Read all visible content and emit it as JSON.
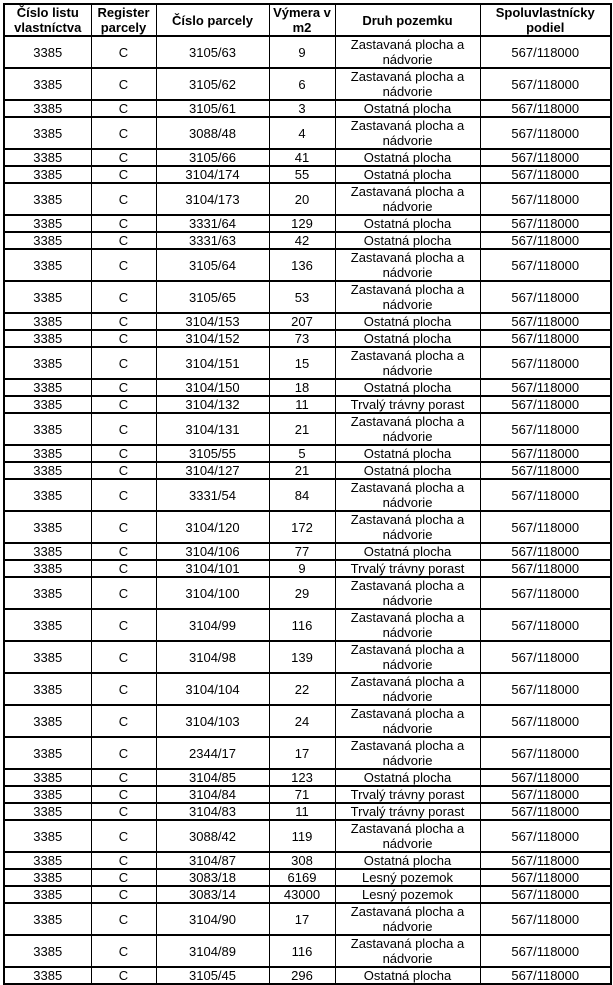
{
  "table": {
    "headers": [
      "Číslo listu vlastníctva",
      "Register parcely",
      "Číslo parcely",
      "Výmera v m2",
      "Druh pozemku",
      "Spoluvlastnícky podiel"
    ],
    "rows": [
      {
        "lv": "3385",
        "reg": "C",
        "parcel": "3105/63",
        "area": "9",
        "type": "Zastavaná plocha a nádvorie",
        "share": "567/118000"
      },
      {
        "lv": "3385",
        "reg": "C",
        "parcel": "3105/62",
        "area": "6",
        "type": "Zastavaná plocha a nádvorie",
        "share": "567/118000"
      },
      {
        "lv": "3385",
        "reg": "C",
        "parcel": "3105/61",
        "area": "3",
        "type": "Ostatná plocha",
        "share": "567/118000"
      },
      {
        "lv": "3385",
        "reg": "C",
        "parcel": "3088/48",
        "area": "4",
        "type": "Zastavaná plocha a nádvorie",
        "share": "567/118000"
      },
      {
        "lv": "3385",
        "reg": "C",
        "parcel": "3105/66",
        "area": "41",
        "type": "Ostatná plocha",
        "share": "567/118000"
      },
      {
        "lv": "3385",
        "reg": "C",
        "parcel": "3104/174",
        "area": "55",
        "type": "Ostatná plocha",
        "share": "567/118000"
      },
      {
        "lv": "3385",
        "reg": "C",
        "parcel": "3104/173",
        "area": "20",
        "type": "Zastavaná plocha a nádvorie",
        "share": "567/118000"
      },
      {
        "lv": "3385",
        "reg": "C",
        "parcel": "3331/64",
        "area": "129",
        "type": "Ostatná plocha",
        "share": "567/118000"
      },
      {
        "lv": "3385",
        "reg": "C",
        "parcel": "3331/63",
        "area": "42",
        "type": "Ostatná plocha",
        "share": "567/118000"
      },
      {
        "lv": "3385",
        "reg": "C",
        "parcel": "3105/64",
        "area": "136",
        "type": "Zastavaná plocha a nádvorie",
        "share": "567/118000"
      },
      {
        "lv": "3385",
        "reg": "C",
        "parcel": "3105/65",
        "area": "53",
        "type": "Zastavaná plocha a nádvorie",
        "share": "567/118000"
      },
      {
        "lv": "3385",
        "reg": "C",
        "parcel": "3104/153",
        "area": "207",
        "type": "Ostatná plocha",
        "share": "567/118000"
      },
      {
        "lv": "3385",
        "reg": "C",
        "parcel": "3104/152",
        "area": "73",
        "type": "Ostatná plocha",
        "share": "567/118000"
      },
      {
        "lv": "3385",
        "reg": "C",
        "parcel": "3104/151",
        "area": "15",
        "type": "Zastavaná plocha a nádvorie",
        "share": "567/118000"
      },
      {
        "lv": "3385",
        "reg": "C",
        "parcel": "3104/150",
        "area": "18",
        "type": "Ostatná plocha",
        "share": "567/118000"
      },
      {
        "lv": "3385",
        "reg": "C",
        "parcel": "3104/132",
        "area": "11",
        "type": "Trvalý trávny porast",
        "share": "567/118000"
      },
      {
        "lv": "3385",
        "reg": "C",
        "parcel": "3104/131",
        "area": "21",
        "type": "Zastavaná plocha a nádvorie",
        "share": "567/118000"
      },
      {
        "lv": "3385",
        "reg": "C",
        "parcel": "3105/55",
        "area": "5",
        "type": "Ostatná plocha",
        "share": "567/118000"
      },
      {
        "lv": "3385",
        "reg": "C",
        "parcel": "3104/127",
        "area": "21",
        "type": "Ostatná plocha",
        "share": "567/118000"
      },
      {
        "lv": "3385",
        "reg": "C",
        "parcel": "3331/54",
        "area": "84",
        "type": "Zastavaná plocha a nádvorie",
        "share": "567/118000"
      },
      {
        "lv": "3385",
        "reg": "C",
        "parcel": "3104/120",
        "area": "172",
        "type": "Zastavaná plocha a nádvorie",
        "share": "567/118000"
      },
      {
        "lv": "3385",
        "reg": "C",
        "parcel": "3104/106",
        "area": "77",
        "type": "Ostatná plocha",
        "share": "567/118000"
      },
      {
        "lv": "3385",
        "reg": "C",
        "parcel": "3104/101",
        "area": "9",
        "type": "Trvalý trávny porast",
        "share": "567/118000"
      },
      {
        "lv": "3385",
        "reg": "C",
        "parcel": "3104/100",
        "area": "29",
        "type": "Zastavaná plocha a nádvorie",
        "share": "567/118000"
      },
      {
        "lv": "3385",
        "reg": "C",
        "parcel": "3104/99",
        "area": "116",
        "type": "Zastavaná plocha a nádvorie",
        "share": "567/118000"
      },
      {
        "lv": "3385",
        "reg": "C",
        "parcel": "3104/98",
        "area": "139",
        "type": "Zastavaná plocha a nádvorie",
        "share": "567/118000"
      },
      {
        "lv": "3385",
        "reg": "C",
        "parcel": "3104/104",
        "area": "22",
        "type": "Zastavaná plocha a nádvorie",
        "share": "567/118000"
      },
      {
        "lv": "3385",
        "reg": "C",
        "parcel": "3104/103",
        "area": "24",
        "type": "Zastavaná plocha a nádvorie",
        "share": "567/118000"
      },
      {
        "lv": "3385",
        "reg": "C",
        "parcel": "2344/17",
        "area": "17",
        "type": "Zastavaná plocha a nádvorie",
        "share": "567/118000"
      },
      {
        "lv": "3385",
        "reg": "C",
        "parcel": "3104/85",
        "area": "123",
        "type": "Ostatná plocha",
        "share": "567/118000"
      },
      {
        "lv": "3385",
        "reg": "C",
        "parcel": "3104/84",
        "area": "71",
        "type": "Trvalý trávny porast",
        "share": "567/118000"
      },
      {
        "lv": "3385",
        "reg": "C",
        "parcel": "3104/83",
        "area": "11",
        "type": "Trvalý trávny porast",
        "share": "567/118000"
      },
      {
        "lv": "3385",
        "reg": "C",
        "parcel": "3088/42",
        "area": "119",
        "type": "Zastavaná plocha a nádvorie",
        "share": "567/118000"
      },
      {
        "lv": "3385",
        "reg": "C",
        "parcel": "3104/87",
        "area": "308",
        "type": "Ostatná plocha",
        "share": "567/118000"
      },
      {
        "lv": "3385",
        "reg": "C",
        "parcel": "3083/18",
        "area": "6169",
        "type": "Lesný pozemok",
        "share": "567/118000"
      },
      {
        "lv": "3385",
        "reg": "C",
        "parcel": "3083/14",
        "area": "43000",
        "type": "Lesný pozemok",
        "share": "567/118000"
      },
      {
        "lv": "3385",
        "reg": "C",
        "parcel": "3104/90",
        "area": "17",
        "type": "Zastavaná plocha a nádvorie",
        "share": "567/118000"
      },
      {
        "lv": "3385",
        "reg": "C",
        "parcel": "3104/89",
        "area": "116",
        "type": "Zastavaná plocha a nádvorie",
        "share": "567/118000"
      },
      {
        "lv": "3385",
        "reg": "C",
        "parcel": "3105/45",
        "area": "296",
        "type": "Ostatná plocha",
        "share": "567/118000"
      }
    ]
  },
  "colors": {
    "border": "#000000",
    "text": "#000000",
    "background": "#ffffff"
  }
}
